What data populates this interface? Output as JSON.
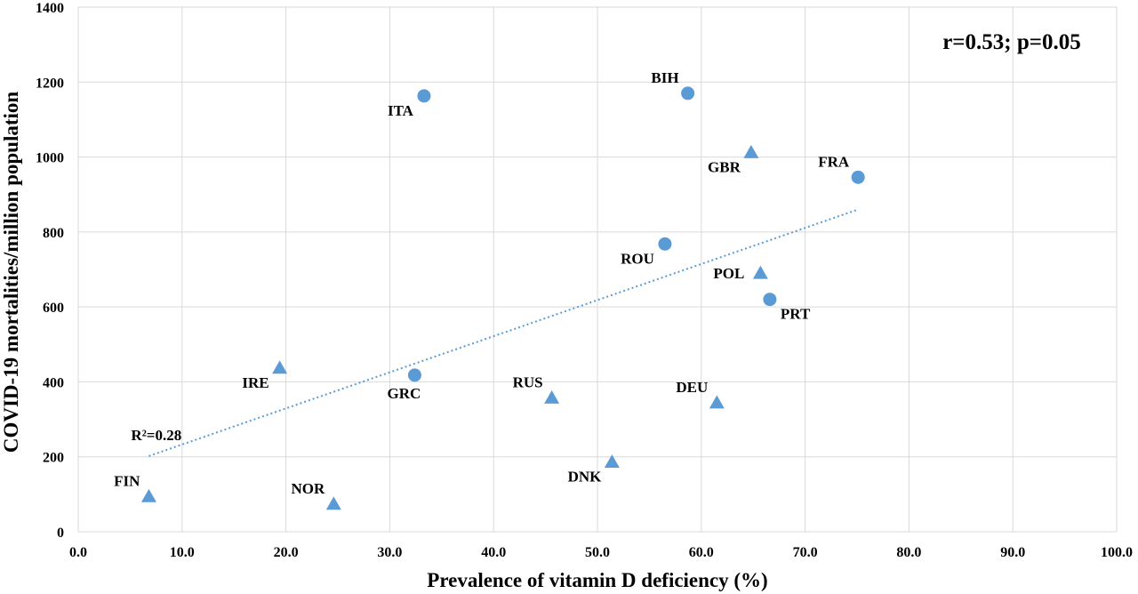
{
  "chart_data": {
    "type": "scatter",
    "xlabel": "Prevalence of vitamin D deficiency (%)",
    "ylabel": "COVID-19 mortalities/million population",
    "xlim": [
      0,
      100
    ],
    "ylim": [
      0,
      1400
    ],
    "x_ticks": [
      "0.0",
      "10.0",
      "20.0",
      "30.0",
      "40.0",
      "50.0",
      "60.0",
      "70.0",
      "80.0",
      "90.0",
      "100.0"
    ],
    "y_ticks": [
      "0",
      "200",
      "400",
      "600",
      "800",
      "1000",
      "1200",
      "1400"
    ],
    "grid": true,
    "marker_color": "#5b9bd5",
    "points": [
      {
        "label": "ITA",
        "x": 33.3,
        "y": 1163,
        "marker": "circle",
        "label_pos": "below-left"
      },
      {
        "label": "BIH",
        "x": 58.7,
        "y": 1170,
        "marker": "circle",
        "label_pos": "above-left"
      },
      {
        "label": "GBR",
        "x": 64.8,
        "y": 1012,
        "marker": "triangle",
        "label_pos": "below-left"
      },
      {
        "label": "FRA",
        "x": 75.1,
        "y": 946,
        "marker": "circle",
        "label_pos": "above-left"
      },
      {
        "label": "ROU",
        "x": 56.5,
        "y": 768,
        "marker": "circle",
        "label_pos": "below-left"
      },
      {
        "label": "POL",
        "x": 65.7,
        "y": 690,
        "marker": "triangle",
        "label_pos": "left"
      },
      {
        "label": "PRT",
        "x": 66.6,
        "y": 620,
        "marker": "circle",
        "label_pos": "below-right"
      },
      {
        "label": "IRE",
        "x": 19.4,
        "y": 437,
        "marker": "triangle",
        "label_pos": "below-left"
      },
      {
        "label": "GRC",
        "x": 32.4,
        "y": 418,
        "marker": "circle",
        "label_pos": "below"
      },
      {
        "label": "RUS",
        "x": 45.6,
        "y": 357,
        "marker": "triangle",
        "label_pos": "above-left"
      },
      {
        "label": "DEU",
        "x": 61.5,
        "y": 344,
        "marker": "triangle",
        "label_pos": "above-left"
      },
      {
        "label": "DNK",
        "x": 51.4,
        "y": 186,
        "marker": "triangle",
        "label_pos": "below-left"
      },
      {
        "label": "FIN",
        "x": 6.8,
        "y": 94,
        "marker": "triangle",
        "label_pos": "above-left"
      },
      {
        "label": "NOR",
        "x": 24.6,
        "y": 74,
        "marker": "triangle",
        "label_pos": "above-left"
      }
    ],
    "trendline": {
      "style": "dotted",
      "from": [
        6.8,
        202
      ],
      "to": [
        75.1,
        860
      ],
      "label": "R²=0.28"
    },
    "annotation": "r=0.53; p=0.05"
  }
}
